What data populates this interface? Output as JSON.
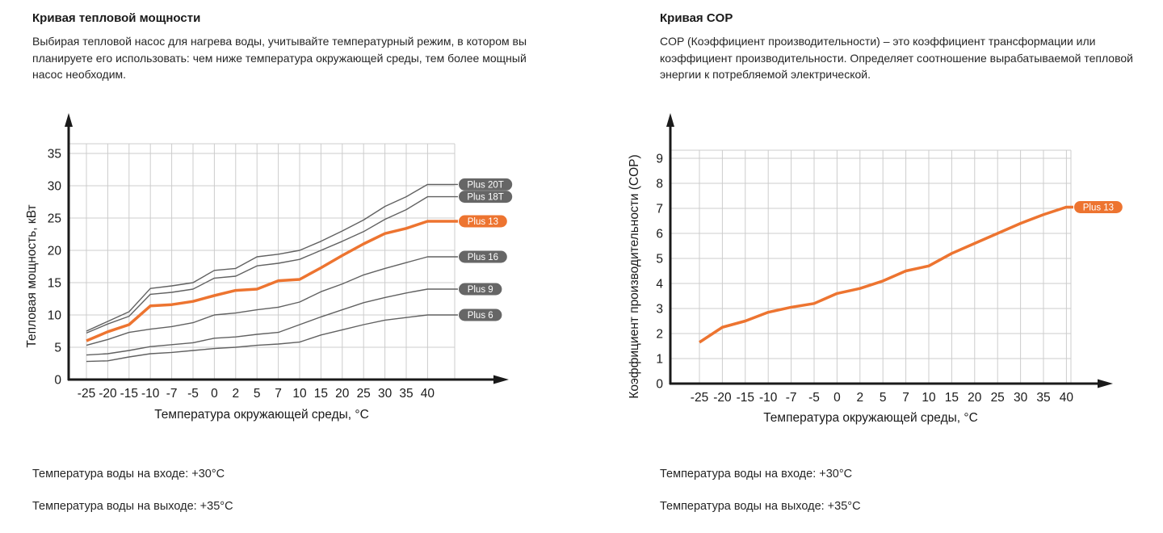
{
  "panels": {
    "left": {
      "title": "Кривая тепловой мощности",
      "description": "Выбирая тепловой насос для нагрева воды, учитывайте температурный режим, в котором вы планируете его использовать: чем ниже температура окружающей среды, тем более мощный насос необходим.",
      "footnotes": [
        "Температура воды на входе: +30°C",
        "Температура воды на выходе: +35°C"
      ]
    },
    "right": {
      "title": "Кривая COP",
      "description": "COP (Коэффициент производительности) – это коэффициент трансформации или коэффициент производительности. Определяет соотношение вырабатываемой тепловой энергии к потребляемой электрической.",
      "footnotes": [
        "Температура воды на входе: +30°C",
        "Температура воды на выходе: +35°C"
      ]
    }
  },
  "colors": {
    "accent": "#ED7430",
    "curve": "#616161",
    "badge": "#666666",
    "grid": "#cccccc",
    "axis": "#1a1a1a",
    "text": "#1a1a1a"
  },
  "chart_data": [
    {
      "type": "line",
      "title": "Кривая тепловой мощности",
      "xlabel": "Температура окружающей среды, °C",
      "ylabel": "Тепловая мощность, кВт",
      "x": [
        -25,
        -20,
        -15,
        -10,
        -7,
        -5,
        0,
        2,
        5,
        7,
        10,
        15,
        20,
        25,
        30,
        35,
        40
      ],
      "ylim": [
        0,
        35
      ],
      "ytick_step": 5,
      "grid": true,
      "legend_position": "right-badges",
      "series": [
        {
          "name": "Plus 20T",
          "highlight": false,
          "values": [
            7.5,
            9.0,
            10.5,
            14.1,
            14.5,
            15.0,
            16.9,
            17.2,
            19.0,
            19.4,
            20.0,
            21.4,
            23.0,
            24.7,
            26.8,
            28.3,
            30.2
          ]
        },
        {
          "name": "Plus 18T",
          "highlight": false,
          "values": [
            7.2,
            8.6,
            9.8,
            13.2,
            13.5,
            14.0,
            15.7,
            16.0,
            17.6,
            18.0,
            18.6,
            20.0,
            21.4,
            22.9,
            24.8,
            26.3,
            28.3
          ]
        },
        {
          "name": "Plus 13",
          "highlight": true,
          "values": [
            6.0,
            7.4,
            8.5,
            11.4,
            11.6,
            12.1,
            13.0,
            13.8,
            14.0,
            15.3,
            15.5,
            17.3,
            19.2,
            21.0,
            22.6,
            23.4,
            24.5
          ]
        },
        {
          "name": "Plus 16",
          "highlight": false,
          "values": [
            5.3,
            6.2,
            7.3,
            7.8,
            8.2,
            8.8,
            10.0,
            10.3,
            10.8,
            11.2,
            12.0,
            13.6,
            14.8,
            16.2,
            17.2,
            18.1,
            19.0
          ]
        },
        {
          "name": "Plus 9",
          "highlight": false,
          "values": [
            3.8,
            4.0,
            4.5,
            5.1,
            5.4,
            5.7,
            6.4,
            6.6,
            7.0,
            7.3,
            8.5,
            9.7,
            10.8,
            11.9,
            12.7,
            13.4,
            14.0
          ]
        },
        {
          "name": "Plus 6",
          "highlight": false,
          "values": [
            2.8,
            2.9,
            3.5,
            4.0,
            4.2,
            4.5,
            4.8,
            5.0,
            5.3,
            5.5,
            5.8,
            6.9,
            7.7,
            8.5,
            9.2,
            9.6,
            10.0
          ]
        }
      ]
    },
    {
      "type": "line",
      "title": "Кривая COP",
      "xlabel": "Температура окружающей среды, °C",
      "ylabel": "Коэффициент производительности (COP)",
      "x": [
        -25,
        -20,
        -15,
        -10,
        -7,
        -5,
        0,
        2,
        5,
        7,
        10,
        15,
        20,
        25,
        30,
        35,
        40
      ],
      "ylim": [
        0,
        9
      ],
      "ytick_step": 1,
      "grid": true,
      "legend_position": "right-badges",
      "series": [
        {
          "name": "Plus 13",
          "highlight": true,
          "values": [
            1.65,
            2.25,
            2.5,
            2.85,
            3.05,
            3.2,
            3.6,
            3.8,
            4.1,
            4.5,
            4.7,
            5.2,
            5.6,
            6.0,
            6.4,
            6.75,
            7.05
          ]
        }
      ]
    }
  ]
}
